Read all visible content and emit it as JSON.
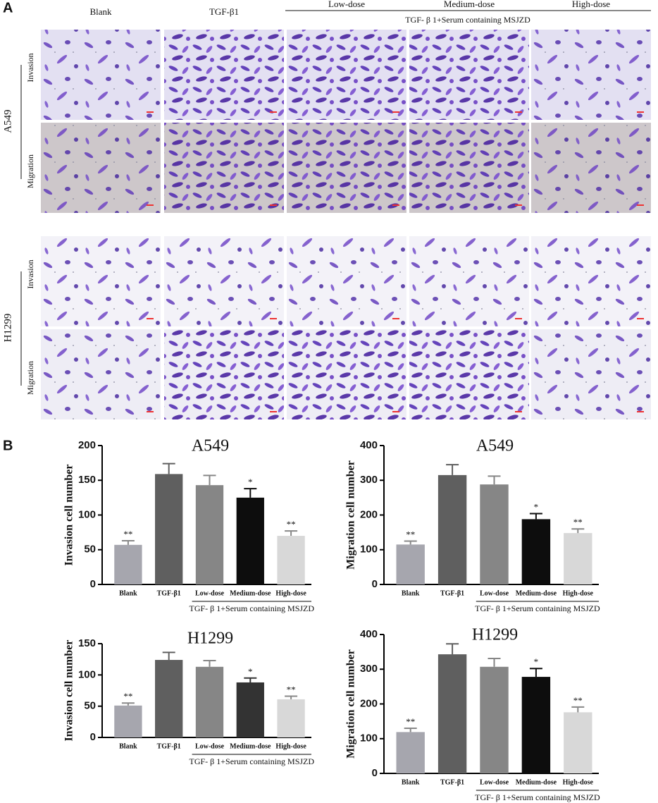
{
  "panel_a": {
    "label": "A",
    "columns": [
      "Blank",
      "TGF-β1",
      "Low-dose",
      "Medium-dose",
      "High-dose"
    ],
    "group_label": "TGF- β 1+Serum containing MSJZD",
    "cell_lines": [
      "A549",
      "H1299"
    ],
    "rows": [
      "Invasion",
      "Migration"
    ]
  },
  "panel_b_label": "B",
  "chart_data": [
    {
      "type": "bar",
      "title": "A549",
      "y_label": "Invasion cell number",
      "categories": [
        "Blank",
        "TGF-β1",
        "Low-dose",
        "Medium-dose",
        "High-dose"
      ],
      "values": [
        57,
        159,
        143,
        125,
        70
      ],
      "errors": [
        6,
        15,
        14,
        13,
        7
      ],
      "colors": [
        "#a6a6ae",
        "#5f5f5f",
        "#868686",
        "#0d0d0d",
        "#d8d8d8"
      ],
      "significance": [
        "**",
        null,
        null,
        "*",
        "**"
      ],
      "group_label": "TGF- β 1+Serum containing MSJZD",
      "ylim": [
        0,
        200
      ],
      "yticks": [
        0,
        50,
        100,
        150,
        200
      ]
    },
    {
      "type": "bar",
      "title": "A549",
      "y_label": "Migration cell number",
      "categories": [
        "Blank",
        "TGF-β1",
        "Low-dose",
        "Medium-dose",
        "High-dose"
      ],
      "values": [
        115,
        315,
        288,
        188,
        148
      ],
      "errors": [
        10,
        30,
        24,
        16,
        12
      ],
      "colors": [
        "#a6a6ae",
        "#5f5f5f",
        "#868686",
        "#0d0d0d",
        "#d8d8d8"
      ],
      "significance": [
        "**",
        null,
        null,
        "*",
        "**"
      ],
      "group_label": "TGF- β 1+Serum containing MSJZD",
      "ylim": [
        0,
        400
      ],
      "yticks": [
        0,
        100,
        200,
        300,
        400
      ]
    },
    {
      "type": "bar",
      "title": "H1299",
      "y_label": "Invasion cell number",
      "categories": [
        "Blank",
        "TGF-β1",
        "Low-dose",
        "Medium-dose",
        "High-dose"
      ],
      "values": [
        51,
        124,
        113,
        88,
        61
      ],
      "errors": [
        4,
        12,
        10,
        7,
        5
      ],
      "colors": [
        "#a6a6ae",
        "#5f5f5f",
        "#868686",
        "#333333",
        "#d8d8d8"
      ],
      "significance": [
        "**",
        null,
        null,
        "*",
        "**"
      ],
      "group_label": "TGF- β 1+Serum containing MSJZD",
      "ylim": [
        0,
        150
      ],
      "yticks": [
        0,
        50,
        100,
        150
      ]
    },
    {
      "type": "bar",
      "title": "H1299",
      "y_label": "Migration cell number",
      "categories": [
        "Blank",
        "TGF-β1",
        "Low-dose",
        "Medium-dose",
        "High-dose"
      ],
      "values": [
        119,
        343,
        307,
        278,
        176
      ],
      "errors": [
        11,
        30,
        24,
        24,
        15
      ],
      "colors": [
        "#a6a6ae",
        "#5f5f5f",
        "#868686",
        "#0d0d0d",
        "#d8d8d8"
      ],
      "significance": [
        "**",
        null,
        null,
        "*",
        "**"
      ],
      "group_label": "TGF- β 1+Serum containing MSJZD",
      "ylim": [
        0,
        400
      ],
      "yticks": [
        0,
        100,
        200,
        300,
        400
      ]
    }
  ]
}
